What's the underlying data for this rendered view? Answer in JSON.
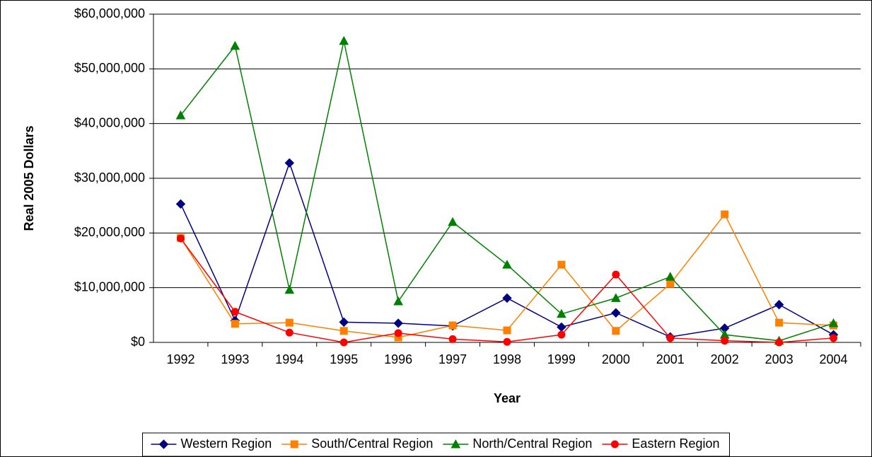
{
  "chart_data": {
    "type": "line",
    "x_label": "Year",
    "y_label": "Real 2005 Dollars",
    "categories": [
      "1992",
      "1993",
      "1994",
      "1995",
      "1996",
      "1997",
      "1998",
      "1999",
      "2000",
      "2001",
      "2002",
      "2003",
      "2004"
    ],
    "series": [
      {
        "name": "Western Region",
        "color": "#000080",
        "marker": "diamond",
        "values": [
          25300000,
          4000000,
          32800000,
          3700000,
          3500000,
          3000000,
          8100000,
          2800000,
          5400000,
          1000000,
          2600000,
          6900000,
          1400000
        ]
      },
      {
        "name": "South/Central Region",
        "color": "#ff8000",
        "marker": "square",
        "values": [
          19100000,
          3400000,
          3600000,
          2100000,
          900000,
          3100000,
          2200000,
          14200000,
          2100000,
          10700000,
          23400000,
          3600000,
          3100000
        ]
      },
      {
        "name": "North/Central Region",
        "color": "#008000",
        "marker": "triangle",
        "values": [
          41500000,
          54200000,
          9600000,
          55100000,
          7500000,
          22000000,
          14200000,
          5200000,
          8100000,
          12000000,
          1400000,
          300000,
          3500000
        ]
      },
      {
        "name": "Eastern Region",
        "color": "#ff0000",
        "marker": "circle",
        "values": [
          19000000,
          5600000,
          1800000,
          0,
          1700000,
          600000,
          100000,
          1400000,
          12400000,
          800000,
          300000,
          0,
          800000
        ]
      }
    ],
    "ylim": [
      0,
      60000000
    ],
    "yticks": [
      {
        "value": 0,
        "label": "$0"
      },
      {
        "value": 10000000,
        "label": "$10,000,000"
      },
      {
        "value": 20000000,
        "label": "$20,000,000"
      },
      {
        "value": 30000000,
        "label": "$30,000,000"
      },
      {
        "value": 40000000,
        "label": "$40,000,000"
      },
      {
        "value": 50000000,
        "label": "$50,000,000"
      },
      {
        "value": 60000000,
        "label": "$60,000,000"
      }
    ],
    "grid": true,
    "legend": "bottom"
  }
}
